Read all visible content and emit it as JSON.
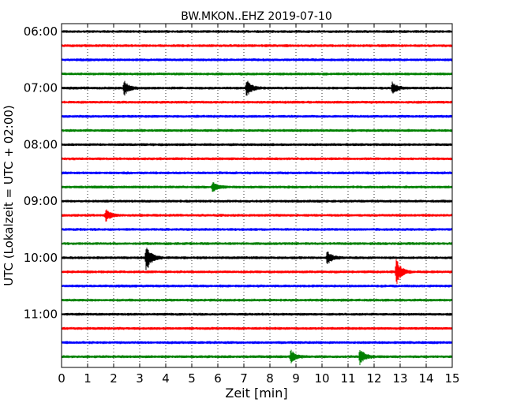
{
  "chart_data": {
    "type": "line",
    "title": "BW.MKON..EHZ 2019-07-10",
    "xlabel": "Zeit  [min]",
    "ylabel": "UTC (Lokalzeit = UTC + 02:00)",
    "xlim": [
      0,
      15
    ],
    "x_ticks": [
      "0",
      "1",
      "2",
      "3",
      "4",
      "5",
      "6",
      "7",
      "8",
      "9",
      "10",
      "11",
      "12",
      "13",
      "14",
      "15"
    ],
    "y_tick_labels": [
      "06:00",
      "07:00",
      "08:00",
      "09:00",
      "10:00",
      "11:00"
    ],
    "grid": "vertical dotted",
    "trace_colors": [
      "#000000",
      "#ff0000",
      "#0000ff",
      "#008000"
    ],
    "traces": [
      {
        "start": "06:00",
        "color": "#000000",
        "events": []
      },
      {
        "start": "06:15",
        "color": "#ff0000",
        "events": []
      },
      {
        "start": "06:30",
        "color": "#0000ff",
        "events": []
      },
      {
        "start": "06:45",
        "color": "#008000",
        "events": []
      },
      {
        "start": "07:00",
        "color": "#000000",
        "events": [
          {
            "min": 2.4,
            "amp": 0.5
          },
          {
            "min": 7.1,
            "amp": 0.6
          },
          {
            "min": 12.7,
            "amp": 0.4
          }
        ]
      },
      {
        "start": "07:15",
        "color": "#ff0000",
        "events": []
      },
      {
        "start": "07:30",
        "color": "#0000ff",
        "events": []
      },
      {
        "start": "07:45",
        "color": "#008000",
        "events": []
      },
      {
        "start": "08:00",
        "color": "#000000",
        "events": []
      },
      {
        "start": "08:15",
        "color": "#ff0000",
        "events": []
      },
      {
        "start": "08:30",
        "color": "#0000ff",
        "events": []
      },
      {
        "start": "08:45",
        "color": "#008000",
        "events": [
          {
            "min": 5.8,
            "amp": 0.35
          }
        ]
      },
      {
        "start": "09:00",
        "color": "#000000",
        "events": []
      },
      {
        "start": "09:15",
        "color": "#ff0000",
        "events": [
          {
            "min": 1.7,
            "amp": 0.4
          }
        ]
      },
      {
        "start": "09:30",
        "color": "#0000ff",
        "events": []
      },
      {
        "start": "09:45",
        "color": "#008000",
        "events": []
      },
      {
        "start": "10:00",
        "color": "#000000",
        "events": [
          {
            "min": 3.25,
            "amp": 1.0
          },
          {
            "min": 10.2,
            "amp": 0.45
          }
        ]
      },
      {
        "start": "10:15",
        "color": "#ff0000",
        "events": [
          {
            "min": 12.85,
            "amp": 0.9
          }
        ]
      },
      {
        "start": "10:30",
        "color": "#0000ff",
        "events": []
      },
      {
        "start": "10:45",
        "color": "#008000",
        "events": []
      },
      {
        "start": "11:00",
        "color": "#000000",
        "events": []
      },
      {
        "start": "11:15",
        "color": "#ff0000",
        "events": []
      },
      {
        "start": "11:30",
        "color": "#0000ff",
        "events": []
      },
      {
        "start": "11:45",
        "color": "#008000",
        "events": [
          {
            "min": 8.8,
            "amp": 0.45
          },
          {
            "min": 11.45,
            "amp": 0.55
          }
        ]
      }
    ]
  }
}
